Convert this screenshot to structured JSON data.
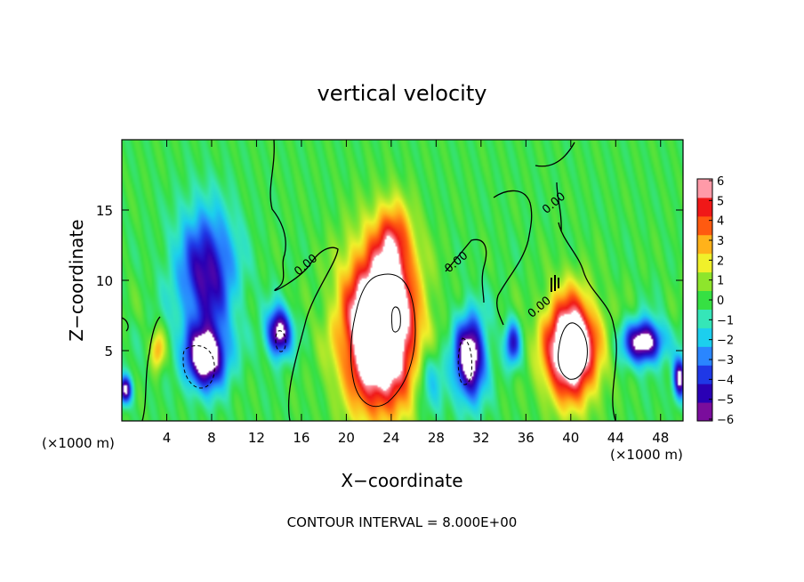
{
  "chart_data": {
    "type": "heatmap",
    "title": "vertical velocity",
    "xlabel": "X−coordinate",
    "ylabel": "Z−coordinate",
    "x_unit_left": "(×1000 m)",
    "x_unit_right": "(×1000 m)",
    "footer": "CONTOUR INTERVAL = 8.000E+00",
    "xlim": [
      0,
      50
    ],
    "ylim": [
      0,
      20
    ],
    "x_ticks": [
      4,
      8,
      12,
      16,
      20,
      24,
      28,
      32,
      36,
      40,
      44,
      48
    ],
    "y_ticks": [
      5,
      10,
      15
    ],
    "colorbar": {
      "min": -6,
      "max": 6,
      "tick_labels": [
        "6",
        "5",
        "4",
        "3",
        "2",
        "1",
        "0",
        "−1",
        "−2",
        "−3",
        "−4",
        "−5",
        "−6"
      ],
      "colors": [
        "#7a0d9c",
        "#2a00b4",
        "#1f38e6",
        "#2a86ff",
        "#1ccfee",
        "#35e6b8",
        "#36e043",
        "#8ee52c",
        "#f0f02a",
        "#ffb21a",
        "#ff5a10",
        "#f01818",
        "#ff9aa8"
      ]
    },
    "contour_labels": [
      {
        "x": 16.6,
        "z": 10.9,
        "text": "0.00"
      },
      {
        "x": 30.0,
        "z": 11.1,
        "text": "0.00"
      },
      {
        "x": 37.4,
        "z": 7.9,
        "text": "0.00"
      },
      {
        "x": 38.7,
        "z": 15.3,
        "text": "0.00"
      }
    ],
    "features": [
      {
        "kind": "updraft",
        "x": 23,
        "z": 6.5,
        "sx": 3.2,
        "sz": 5.5,
        "w": 11
      },
      {
        "kind": "updraft",
        "x": 24.2,
        "z": 12.8,
        "sx": 1.6,
        "sz": 2.8,
        "w": 3.5
      },
      {
        "kind": "updraft",
        "x": 40,
        "z": 5.2,
        "sx": 2.3,
        "sz": 3.6,
        "w": 9.5
      },
      {
        "kind": "updraft",
        "x": 3.2,
        "z": 5.0,
        "sx": 0.6,
        "sz": 1.4,
        "w": 3
      },
      {
        "kind": "downdraft",
        "x": 7.5,
        "z": 4.5,
        "sx": 1.8,
        "sz": 2.2,
        "w": -7.5
      },
      {
        "kind": "downdraft",
        "x": 7.5,
        "z": 10.5,
        "sx": 2.6,
        "sz": 4.5,
        "w": -5.5
      },
      {
        "kind": "downdraft",
        "x": 14,
        "z": 6.3,
        "sx": 1.1,
        "sz": 1.7,
        "w": -7
      },
      {
        "kind": "downdraft",
        "x": 31,
        "z": 4.5,
        "sx": 1.4,
        "sz": 3.0,
        "w": -7.5
      },
      {
        "kind": "downdraft",
        "x": 34.8,
        "z": 5.5,
        "sx": 0.7,
        "sz": 1.6,
        "w": -4.5
      },
      {
        "kind": "downdraft",
        "x": 46.5,
        "z": 5.6,
        "sx": 1.7,
        "sz": 1.5,
        "w": -7.5
      },
      {
        "kind": "downdraft",
        "x": 49.7,
        "z": 3.0,
        "sx": 0.6,
        "sz": 1.5,
        "w": -6.5
      },
      {
        "kind": "downdraft",
        "x": 0.3,
        "z": 2.2,
        "sx": 0.6,
        "sz": 1.0,
        "w": -6.5
      },
      {
        "kind": "downdraft",
        "x": 27.5,
        "z": 3.0,
        "sx": 1.3,
        "sz": 2.5,
        "w": -2.5
      }
    ]
  }
}
